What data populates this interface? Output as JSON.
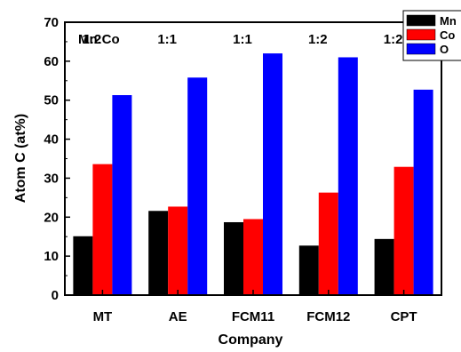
{
  "chart_data": {
    "type": "bar",
    "categories": [
      "MT",
      "AE",
      "FCM11",
      "FCM12",
      "CPT"
    ],
    "series": [
      {
        "name": "Mn",
        "color": "#000000",
        "values": [
          15.1,
          21.6,
          18.7,
          12.7,
          14.4
        ]
      },
      {
        "name": "Co",
        "color": "#ff0000",
        "values": [
          33.6,
          22.7,
          19.5,
          26.3,
          32.9
        ]
      },
      {
        "name": "O",
        "color": "#0000ff",
        "values": [
          51.3,
          55.8,
          62.0,
          61.0,
          52.7
        ]
      }
    ],
    "title": "",
    "xlabel": "Company",
    "ylabel": "Atom C (at%)",
    "ylim": [
      0,
      70
    ],
    "yticks": [
      0,
      10,
      20,
      30,
      40,
      50,
      60,
      70
    ],
    "grid": false,
    "legend": "top-right",
    "annotation_title": "Mn:Co",
    "ratios": [
      "1:2",
      "1:1",
      "1:1",
      "1:2",
      "1:2"
    ]
  }
}
